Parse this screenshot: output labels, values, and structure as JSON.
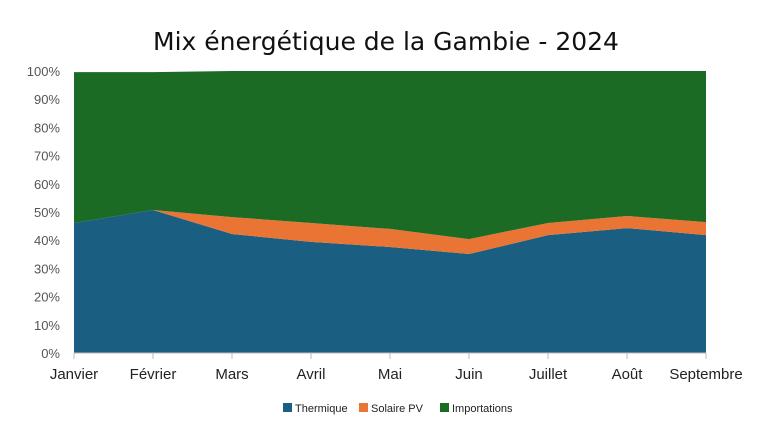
{
  "chart_data": {
    "type": "area",
    "stacked": true,
    "title": "Mix énergétique de la Gambie - 2024",
    "xlabel": "",
    "ylabel": "",
    "categories": [
      "Janvier",
      "Février",
      "Mars",
      "Avril",
      "Mai",
      "Juin",
      "Juillet",
      "Août",
      "Septembre"
    ],
    "yticks": [
      "0%",
      "10%",
      "20%",
      "30%",
      "40%",
      "50%",
      "60%",
      "70%",
      "80%",
      "90%",
      "100%"
    ],
    "ylim": [
      0,
      100
    ],
    "grid": false,
    "legend_position": "bottom",
    "series": [
      {
        "name": "Thermique",
        "color": "#1a5f82",
        "values": [
          46.1,
          50.7,
          42.2,
          39.4,
          37.6,
          35.1,
          41.8,
          44.3,
          41.8
        ]
      },
      {
        "name": "Solaire PV",
        "color": "#ea7434",
        "values": [
          0,
          0,
          6.0,
          6.7,
          6.4,
          5.3,
          4.3,
          4.3,
          4.6
        ]
      },
      {
        "name": "Importations",
        "color": "#1b6b24",
        "values": [
          53.5,
          48.9,
          51.8,
          53.9,
          56.0,
          59.6,
          53.9,
          51.4,
          53.6
        ]
      }
    ]
  }
}
